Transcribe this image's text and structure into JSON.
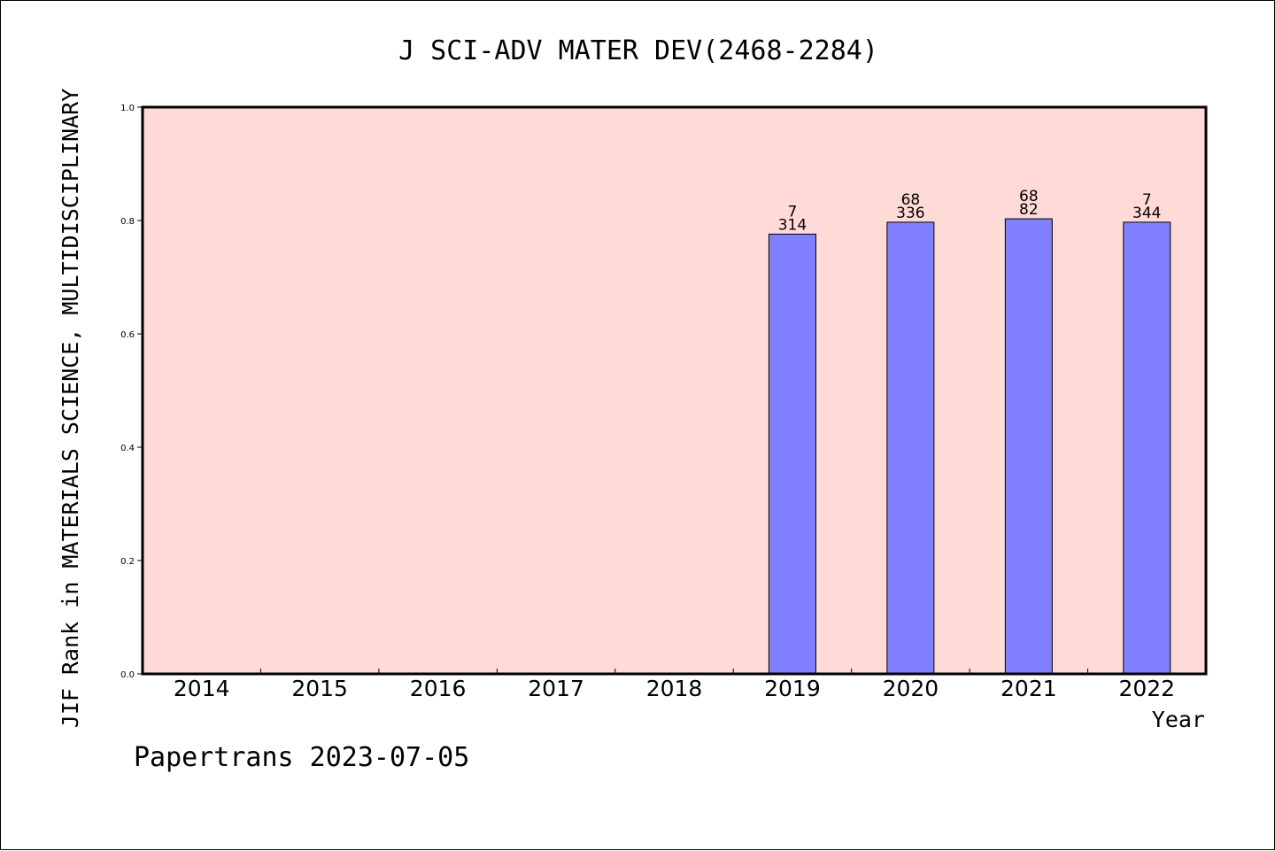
{
  "chart_data": {
    "type": "bar",
    "title": "J SCI-ADV MATER DEV(2468-2284)",
    "ylabel": "JIF Rank in MATERIALS SCIENCE, MULTIDISCIPLINARY",
    "xlabel": "Year",
    "categories": [
      "2014",
      "2015",
      "2016",
      "2017",
      "2018",
      "2019",
      "2020",
      "2021",
      "2022"
    ],
    "values": [
      null,
      null,
      null,
      null,
      null,
      0.776,
      0.797,
      0.803,
      0.797
    ],
    "bar_labels": [
      null,
      null,
      null,
      null,
      null,
      {
        "top": "7",
        "bottom": "314"
      },
      {
        "top": "68",
        "bottom": "336"
      },
      {
        "top": "68",
        "bottom": "82"
      },
      {
        "top": "7",
        "bottom": "344"
      }
    ],
    "ylim": [
      0.0,
      1.0
    ],
    "yticks": [
      "0.0",
      "0.2",
      "0.4",
      "0.6",
      "0.8",
      "1.0"
    ],
    "grid": false,
    "colors": {
      "plot_background": "#ffdad7",
      "bar_fill": "#8080ff",
      "bar_stroke": "#000000"
    }
  },
  "footer": "Papertrans 2023-07-05"
}
